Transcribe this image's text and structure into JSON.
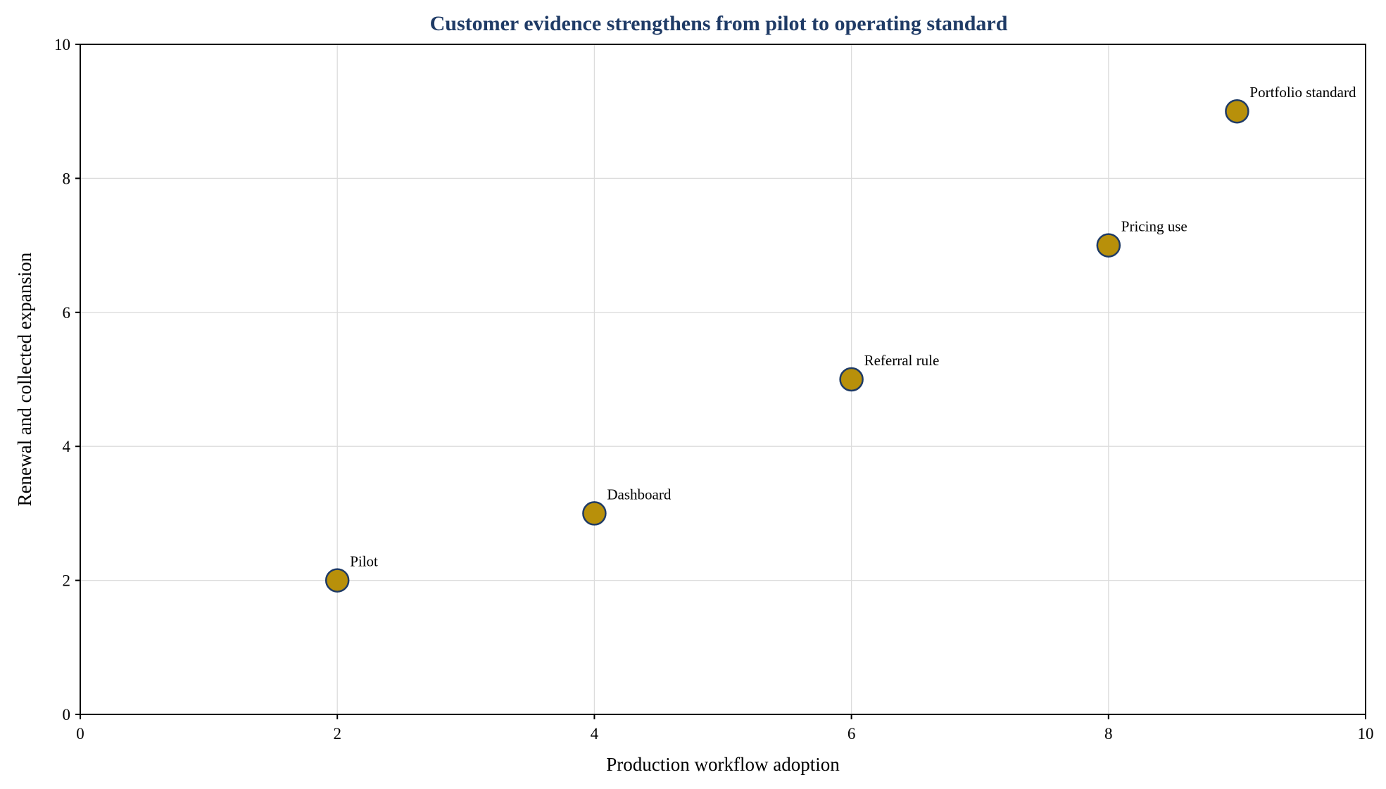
{
  "chart_data": {
    "type": "scatter",
    "title": "Customer evidence strengthens from pilot to operating standard",
    "xlabel": "Production workflow adoption",
    "ylabel": "Renewal and collected expansion",
    "xlim": [
      0,
      10
    ],
    "ylim": [
      0,
      10
    ],
    "xticks": [
      0,
      2,
      4,
      6,
      8,
      10
    ],
    "yticks": [
      0,
      2,
      4,
      6,
      8,
      10
    ],
    "grid": true,
    "points": [
      {
        "x": 2,
        "y": 2,
        "label": "Pilot"
      },
      {
        "x": 4,
        "y": 3,
        "label": "Dashboard"
      },
      {
        "x": 6,
        "y": 5,
        "label": "Referral rule"
      },
      {
        "x": 8,
        "y": 7,
        "label": "Pricing use"
      },
      {
        "x": 9,
        "y": 9,
        "label": "Portfolio standard"
      }
    ],
    "colors": {
      "title": "#1f3b66",
      "marker_fill": "#b8900a",
      "marker_edge": "#1f3b66"
    }
  }
}
